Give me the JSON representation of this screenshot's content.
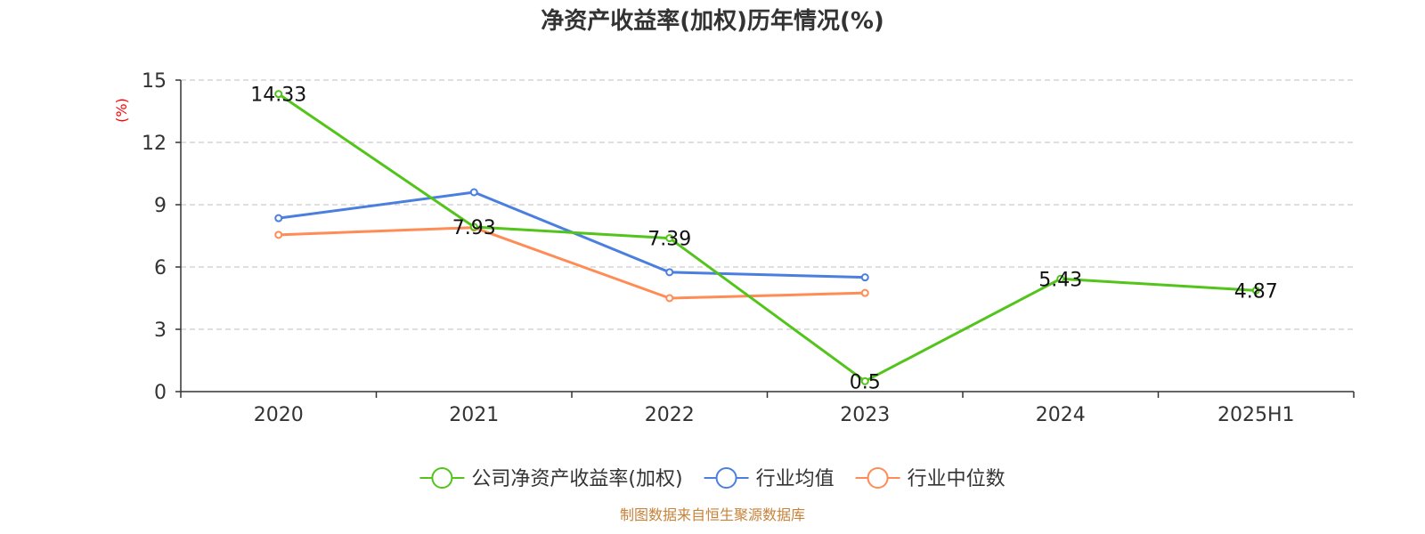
{
  "chart_data": {
    "type": "line",
    "title": "净资产收益率(加权)历年情况(%)",
    "ylabel": "(%)",
    "categories": [
      "2020",
      "2021",
      "2022",
      "2023",
      "2024",
      "2025H1"
    ],
    "ylim": [
      0,
      15
    ],
    "yticks": [
      0,
      3,
      6,
      9,
      12,
      15
    ],
    "grid": "horizontal dashed",
    "legend_position": "bottom",
    "series": [
      {
        "name": "公司净资产收益率(加权)",
        "color": "#52c41a",
        "values": [
          14.33,
          7.93,
          7.39,
          0.5,
          5.43,
          4.87
        ],
        "show_labels": true
      },
      {
        "name": "行业均值",
        "color": "#4a7fe0",
        "values": [
          8.35,
          9.6,
          5.75,
          5.5,
          null,
          null
        ],
        "show_labels": false
      },
      {
        "name": "行业中位数",
        "color": "#ff8c55",
        "values": [
          7.55,
          7.9,
          4.5,
          4.75,
          null,
          null
        ],
        "show_labels": false
      }
    ]
  },
  "source": "制图数据来自恒生聚源数据库"
}
